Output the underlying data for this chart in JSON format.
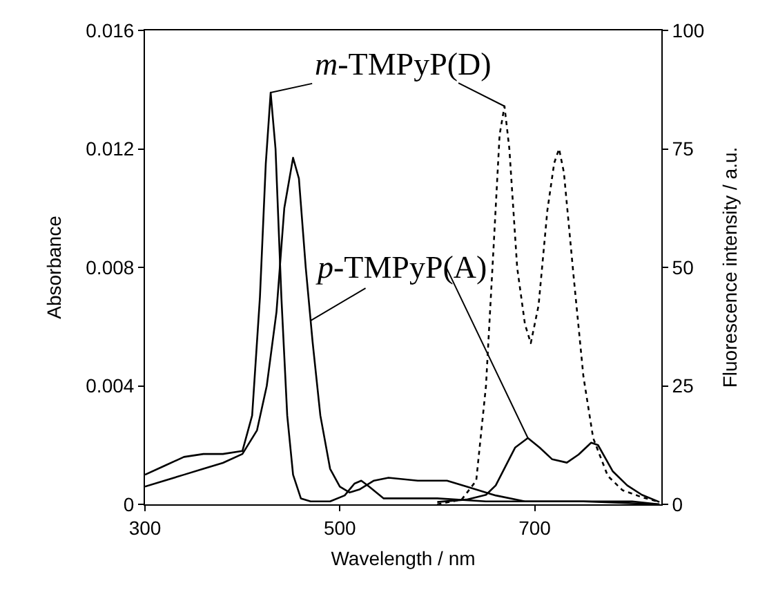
{
  "chart_data": {
    "type": "line",
    "xlabel": "Wavelength / nm",
    "ylabel": "Absorbance",
    "y2label": "Fluorescence intensity / a.u.",
    "xlim": [
      300,
      830
    ],
    "xticks": [
      300,
      500,
      700
    ],
    "ylim": [
      0,
      0.016
    ],
    "yticks": [
      0,
      0.004,
      0.008,
      0.012,
      0.016
    ],
    "y2lim": [
      0,
      100
    ],
    "y2ticks": [
      0,
      25,
      50,
      75,
      100
    ],
    "grid": false,
    "marker": "none",
    "annotations": [
      {
        "text": "m-TMPyP(D)",
        "x": 429,
        "y": 0.0139
      },
      {
        "text": "p-TMPyP(A)",
        "x": 470,
        "y": 0.0062
      }
    ],
    "series": [
      {
        "color": "#000000",
        "line_style": "solid",
        "x": [
          300,
          320,
          340,
          360,
          380,
          400,
          410,
          418,
          424,
          429,
          434,
          440,
          446,
          452,
          460,
          470,
          490,
          505,
          515,
          522,
          530,
          545,
          600,
          650,
          700,
          800,
          828
        ],
        "values": [
          0.001,
          0.0013,
          0.0016,
          0.0017,
          0.0017,
          0.0018,
          0.003,
          0.007,
          0.0115,
          0.0139,
          0.012,
          0.007,
          0.003,
          0.001,
          0.0002,
          0.0001,
          0.0001,
          0.0003,
          0.0007,
          0.0008,
          0.0006,
          0.0002,
          0.0002,
          0.0001,
          0.0001,
          0.0001,
          0
        ]
      },
      {
        "color": "#000000",
        "line_style": "solid",
        "x": [
          300,
          320,
          340,
          360,
          380,
          400,
          415,
          425,
          435,
          443,
          452,
          458,
          465,
          472,
          480,
          490,
          500,
          510,
          520,
          535,
          550,
          580,
          610,
          630,
          660,
          690,
          750,
          828
        ],
        "values": [
          0.0006,
          0.0008,
          0.001,
          0.0012,
          0.0014,
          0.0017,
          0.0025,
          0.004,
          0.0065,
          0.01,
          0.0117,
          0.011,
          0.008,
          0.0055,
          0.003,
          0.0012,
          0.0006,
          0.0004,
          0.0005,
          0.0008,
          0.0009,
          0.0008,
          0.0008,
          0.0006,
          0.0003,
          0.0001,
          0.0001,
          0
        ]
      },
      {
        "color": "#000000",
        "line_style": "dotted",
        "axis": "y2",
        "x": [
          600,
          625,
          640,
          650,
          658,
          664,
          669,
          674,
          682,
          690,
          696,
          704,
          713,
          720,
          725,
          730,
          740,
          750,
          760,
          775,
          790,
          810,
          828
        ],
        "values": [
          0,
          1,
          5,
          25,
          55,
          78,
          84,
          75,
          50,
          38,
          34,
          42,
          62,
          72,
          75,
          70,
          48,
          27,
          14,
          6,
          3,
          1.5,
          0.5
        ]
      },
      {
        "color": "#000000",
        "line_style": "solid",
        "axis": "y2",
        "x": [
          600,
          630,
          650,
          660,
          670,
          680,
          693,
          705,
          718,
          733,
          745,
          758,
          765,
          780,
          795,
          810,
          828
        ],
        "values": [
          0.5,
          1,
          2,
          4,
          8,
          12,
          14,
          12,
          9.5,
          8.8,
          10.5,
          13,
          12.5,
          7,
          4,
          2,
          0.5
        ]
      }
    ]
  }
}
